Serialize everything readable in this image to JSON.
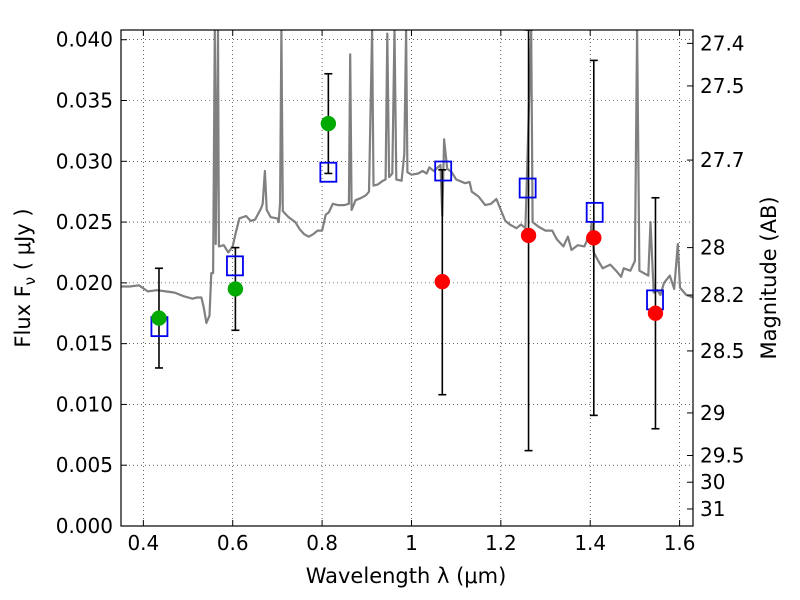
{
  "chart_data": {
    "type": "scatter",
    "xlabel": "Wavelength  λ (μm)",
    "ylabel": "Flux  F",
    "ylabel_sub": "ν",
    "ylabel_unit": " ( μJy )",
    "y2label": "Magnitude (AB)",
    "xlim": [
      0.35,
      1.63
    ],
    "ylim": [
      0.0,
      0.0408
    ],
    "grid": true,
    "x_ticks": [
      {
        "value": 0.4,
        "label": "0.4"
      },
      {
        "value": 0.6,
        "label": "0.6"
      },
      {
        "value": 0.8,
        "label": "0.8"
      },
      {
        "value": 1.0,
        "label": "1"
      },
      {
        "value": 1.2,
        "label": "1.2"
      },
      {
        "value": 1.4,
        "label": "1.4"
      },
      {
        "value": 1.6,
        "label": "1.6"
      }
    ],
    "y_ticks": [
      {
        "value": 0.0,
        "label": "0.000"
      },
      {
        "value": 0.005,
        "label": "0.005"
      },
      {
        "value": 0.01,
        "label": "0.010"
      },
      {
        "value": 0.015,
        "label": "0.015"
      },
      {
        "value": 0.02,
        "label": "0.020"
      },
      {
        "value": 0.025,
        "label": "0.025"
      },
      {
        "value": 0.03,
        "label": "0.030"
      },
      {
        "value": 0.035,
        "label": "0.035"
      },
      {
        "value": 0.04,
        "label": "0.040"
      }
    ],
    "y2_ticks": [
      {
        "flux": 0.0397,
        "label": "27.4"
      },
      {
        "flux": 0.0362,
        "label": "27.5"
      },
      {
        "flux": 0.0301,
        "label": "27.7"
      },
      {
        "flux": 0.0229,
        "label": "28"
      },
      {
        "flux": 0.019,
        "label": "28.2"
      },
      {
        "flux": 0.0144,
        "label": "28.5"
      },
      {
        "flux": 0.0093,
        "label": "29"
      },
      {
        "flux": 0.0058,
        "label": "29.5"
      },
      {
        "flux": 0.0036,
        "label": "30"
      },
      {
        "flux": 0.0014,
        "label": "31"
      }
    ],
    "series": [
      {
        "kind": "spectrum",
        "color": "#808080",
        "points": [
          [
            0.35,
            0.0197
          ],
          [
            0.37,
            0.0197
          ],
          [
            0.39,
            0.0198
          ],
          [
            0.41,
            0.0193
          ],
          [
            0.43,
            0.0194
          ],
          [
            0.45,
            0.0193
          ],
          [
            0.47,
            0.0192
          ],
          [
            0.49,
            0.0189
          ],
          [
            0.51,
            0.0187
          ],
          [
            0.52,
            0.0188
          ],
          [
            0.53,
            0.0188
          ],
          [
            0.535,
            0.018
          ],
          [
            0.541,
            0.0167
          ],
          [
            0.548,
            0.0173
          ],
          [
            0.552,
            0.0208
          ],
          [
            0.556,
            0.0208
          ],
          [
            0.56,
            0.0408
          ],
          [
            0.562,
            0.0232
          ],
          [
            0.567,
            0.0408
          ],
          [
            0.569,
            0.023
          ],
          [
            0.58,
            0.0231
          ],
          [
            0.59,
            0.0225
          ],
          [
            0.6,
            0.023
          ],
          [
            0.606,
            0.024
          ],
          [
            0.615,
            0.0253
          ],
          [
            0.63,
            0.0255
          ],
          [
            0.64,
            0.0251
          ],
          [
            0.65,
            0.0252
          ],
          [
            0.663,
            0.0261
          ],
          [
            0.667,
            0.0265
          ],
          [
            0.672,
            0.0292
          ],
          [
            0.676,
            0.026
          ],
          [
            0.685,
            0.0254
          ],
          [
            0.7,
            0.0253
          ],
          [
            0.703,
            0.025
          ],
          [
            0.706,
            0.0266
          ],
          [
            0.709,
            0.0408
          ],
          [
            0.712,
            0.0259
          ],
          [
            0.725,
            0.0254
          ],
          [
            0.74,
            0.025
          ],
          [
            0.75,
            0.0244
          ],
          [
            0.76,
            0.024
          ],
          [
            0.77,
            0.0238
          ],
          [
            0.78,
            0.024
          ],
          [
            0.79,
            0.0243
          ],
          [
            0.8,
            0.0243
          ],
          [
            0.808,
            0.0256
          ],
          [
            0.815,
            0.0258
          ],
          [
            0.824,
            0.0265
          ],
          [
            0.835,
            0.0264
          ],
          [
            0.85,
            0.0264
          ],
          [
            0.86,
            0.0265
          ],
          [
            0.863,
            0.0388
          ],
          [
            0.866,
            0.026
          ],
          [
            0.875,
            0.0268
          ],
          [
            0.888,
            0.027
          ],
          [
            0.898,
            0.0272
          ],
          [
            0.905,
            0.0275
          ],
          [
            0.912,
            0.0408
          ],
          [
            0.915,
            0.028
          ],
          [
            0.925,
            0.0281
          ],
          [
            0.936,
            0.0284
          ],
          [
            0.942,
            0.0285
          ],
          [
            0.946,
            0.0405
          ],
          [
            0.95,
            0.0287
          ],
          [
            0.957,
            0.029
          ],
          [
            0.962,
            0.0408
          ],
          [
            0.966,
            0.0285
          ],
          [
            0.978,
            0.0284
          ],
          [
            0.984,
            0.0306
          ],
          [
            0.988,
            0.0408
          ],
          [
            0.991,
            0.0291
          ],
          [
            1.0,
            0.0289
          ],
          [
            1.015,
            0.029
          ],
          [
            1.025,
            0.0292
          ],
          [
            1.034,
            0.029
          ],
          [
            1.04,
            0.0295
          ],
          [
            1.05,
            0.0292
          ],
          [
            1.065,
            0.0297
          ],
          [
            1.069,
            0.0255
          ],
          [
            1.073,
            0.0318
          ],
          [
            1.08,
            0.0294
          ],
          [
            1.09,
            0.0291
          ],
          [
            1.1,
            0.0285
          ],
          [
            1.12,
            0.0282
          ],
          [
            1.13,
            0.0283
          ],
          [
            1.135,
            0.0275
          ],
          [
            1.15,
            0.0271
          ],
          [
            1.165,
            0.0264
          ],
          [
            1.178,
            0.0265
          ],
          [
            1.19,
            0.0269
          ],
          [
            1.2,
            0.026
          ],
          [
            1.21,
            0.0251
          ],
          [
            1.22,
            0.0248
          ],
          [
            1.235,
            0.0245
          ],
          [
            1.245,
            0.0248
          ],
          [
            1.255,
            0.0245
          ],
          [
            1.268,
            0.0408
          ],
          [
            1.271,
            0.025
          ],
          [
            1.285,
            0.0246
          ],
          [
            1.3,
            0.0243
          ],
          [
            1.315,
            0.0243
          ],
          [
            1.325,
            0.0236
          ],
          [
            1.34,
            0.023
          ],
          [
            1.35,
            0.0238
          ],
          [
            1.358,
            0.0227
          ],
          [
            1.372,
            0.0231
          ],
          [
            1.387,
            0.023
          ],
          [
            1.395,
            0.0237
          ],
          [
            1.4,
            0.0235
          ],
          [
            1.403,
            0.025
          ],
          [
            1.408,
            0.0225
          ],
          [
            1.418,
            0.0218
          ],
          [
            1.428,
            0.0212
          ],
          [
            1.445,
            0.0215
          ],
          [
            1.458,
            0.021
          ],
          [
            1.469,
            0.0205
          ],
          [
            1.475,
            0.0212
          ],
          [
            1.49,
            0.021
          ],
          [
            1.5,
            0.0218
          ],
          [
            1.505,
            0.0408
          ],
          [
            1.51,
            0.021
          ],
          [
            1.52,
            0.0208
          ],
          [
            1.53,
            0.0206
          ],
          [
            1.535,
            0.025
          ],
          [
            1.542,
            0.0192
          ],
          [
            1.55,
            0.0194
          ],
          [
            1.557,
            0.019
          ],
          [
            1.565,
            0.02
          ],
          [
            1.578,
            0.0206
          ],
          [
            1.588,
            0.0195
          ],
          [
            1.596,
            0.0232
          ],
          [
            1.601,
            0.0196
          ],
          [
            1.615,
            0.019
          ],
          [
            1.63,
            0.0188
          ]
        ]
      },
      {
        "kind": "model_squares",
        "color": "#0000ee",
        "points": [
          [
            0.436,
            0.0164
          ],
          [
            0.605,
            0.0214
          ],
          [
            0.814,
            0.0291
          ],
          [
            1.071,
            0.0292
          ],
          [
            1.26,
            0.0278
          ],
          [
            1.41,
            0.0258
          ],
          [
            1.545,
            0.0186
          ]
        ]
      },
      {
        "kind": "observed_points",
        "points": [
          {
            "x": 0.435,
            "y": 0.0171,
            "yerr_low": 0.013,
            "yerr_high": 0.0212,
            "color": "#00aa00"
          },
          {
            "x": 0.606,
            "y": 0.0195,
            "yerr_low": 0.0161,
            "yerr_high": 0.0229,
            "color": "#00aa00"
          },
          {
            "x": 0.814,
            "y": 0.0331,
            "yerr_low": 0.029,
            "yerr_high": 0.0372,
            "color": "#00aa00"
          },
          {
            "x": 1.069,
            "y": 0.0201,
            "yerr_low": 0.0108,
            "yerr_high": 0.0293,
            "color": "#ff0000"
          },
          {
            "x": 1.262,
            "y": 0.0239,
            "yerr_low": 0.0062,
            "yerr_high": 0.0408,
            "color": "#ff0000"
          },
          {
            "x": 1.408,
            "y": 0.0237,
            "yerr_low": 0.0091,
            "yerr_high": 0.0383,
            "color": "#ff0000"
          },
          {
            "x": 1.546,
            "y": 0.0175,
            "yerr_low": 0.008,
            "yerr_high": 0.027,
            "color": "#ff0000"
          }
        ]
      }
    ]
  }
}
